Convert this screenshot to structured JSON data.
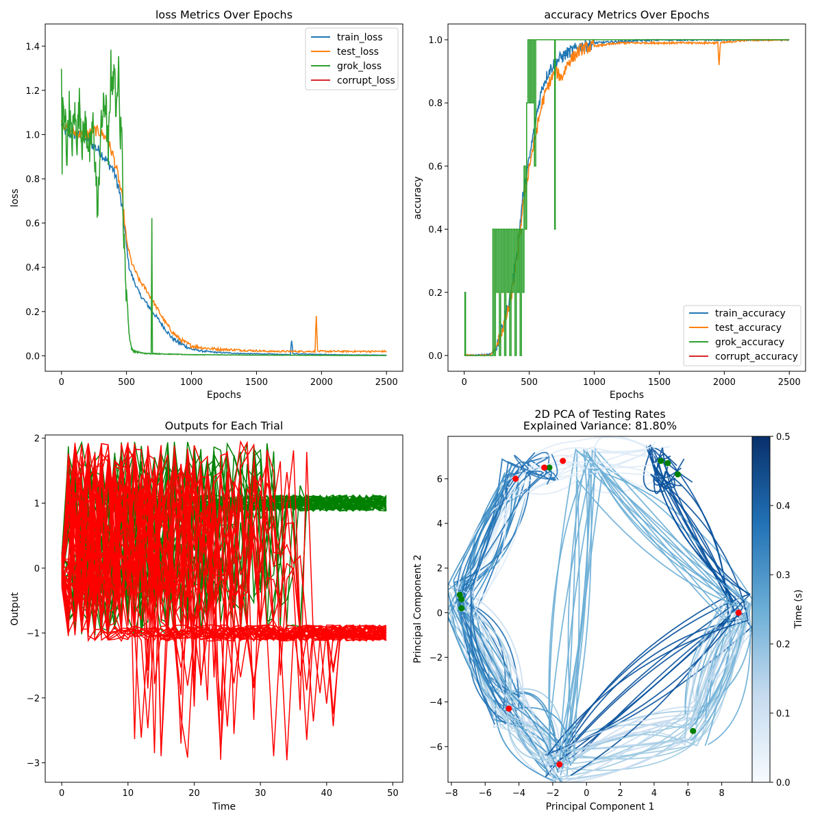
{
  "chart_data": [
    {
      "id": "loss",
      "type": "line",
      "title": "loss Metrics Over Epochs",
      "xlabel": "Epochs",
      "ylabel": "loss",
      "xlim": [
        -125,
        2625
      ],
      "ylim": [
        -0.07,
        1.5
      ],
      "xticks": [
        0,
        500,
        1000,
        1500,
        2000,
        2500
      ],
      "yticks": [
        0.0,
        0.2,
        0.4,
        0.6,
        0.8,
        1.0,
        1.2,
        1.4
      ],
      "legend_position": "top-right",
      "grid": false,
      "series": [
        {
          "name": "train_loss",
          "color": "#1f77b4",
          "points": [
            [
              0,
              1.04
            ],
            [
              50,
              1.0
            ],
            [
              100,
              1.0
            ],
            [
              150,
              0.99
            ],
            [
              200,
              0.97
            ],
            [
              250,
              0.95
            ],
            [
              300,
              0.92
            ],
            [
              350,
              0.88
            ],
            [
              400,
              0.84
            ],
            [
              440,
              0.76
            ],
            [
              470,
              0.65
            ],
            [
              500,
              0.5
            ],
            [
              520,
              0.4
            ],
            [
              550,
              0.35
            ],
            [
              600,
              0.28
            ],
            [
              650,
              0.24
            ],
            [
              700,
              0.2
            ],
            [
              750,
              0.16
            ],
            [
              800,
              0.12
            ],
            [
              850,
              0.08
            ],
            [
              900,
              0.06
            ],
            [
              950,
              0.045
            ],
            [
              1000,
              0.03
            ],
            [
              1100,
              0.02
            ],
            [
              1200,
              0.015
            ],
            [
              1400,
              0.01
            ],
            [
              1600,
              0.008
            ],
            [
              1760,
              0.005
            ],
            [
              1770,
              0.07
            ],
            [
              1780,
              0.01
            ],
            [
              2000,
              0.006
            ],
            [
              2200,
              0.004
            ],
            [
              2500,
              0.003
            ]
          ]
        },
        {
          "name": "test_loss",
          "color": "#ff7f0e",
          "points": [
            [
              0,
              1.06
            ],
            [
              50,
              1.02
            ],
            [
              100,
              1.01
            ],
            [
              150,
              1.0
            ],
            [
              200,
              1.0
            ],
            [
              250,
              1.02
            ],
            [
              300,
              1.01
            ],
            [
              350,
              0.98
            ],
            [
              400,
              0.9
            ],
            [
              440,
              0.8
            ],
            [
              470,
              0.7
            ],
            [
              500,
              0.52
            ],
            [
              540,
              0.42
            ],
            [
              600,
              0.34
            ],
            [
              650,
              0.3
            ],
            [
              700,
              0.25
            ],
            [
              750,
              0.2
            ],
            [
              800,
              0.15
            ],
            [
              850,
              0.11
            ],
            [
              900,
              0.08
            ],
            [
              950,
              0.06
            ],
            [
              1000,
              0.045
            ],
            [
              1100,
              0.035
            ],
            [
              1200,
              0.03
            ],
            [
              1400,
              0.025
            ],
            [
              1600,
              0.02
            ],
            [
              1800,
              0.02
            ],
            [
              1950,
              0.02
            ],
            [
              1960,
              0.19
            ],
            [
              1970,
              0.02
            ],
            [
              2100,
              0.02
            ],
            [
              2300,
              0.02
            ],
            [
              2450,
              0.02
            ],
            [
              2500,
              0.02
            ]
          ]
        },
        {
          "name": "grok_loss",
          "color": "#2ca02c",
          "points": [
            [
              0,
              1.32
            ],
            [
              5,
              0.81
            ],
            [
              10,
              1.2
            ],
            [
              20,
              1.0
            ],
            [
              30,
              1.1
            ],
            [
              40,
              0.9
            ],
            [
              60,
              1.12
            ],
            [
              80,
              0.95
            ],
            [
              100,
              1.1
            ],
            [
              120,
              0.98
            ],
            [
              140,
              1.16
            ],
            [
              160,
              0.95
            ],
            [
              180,
              1.05
            ],
            [
              200,
              1.0
            ],
            [
              220,
              0.9
            ],
            [
              240,
              1.06
            ],
            [
              260,
              0.87
            ],
            [
              280,
              0.64
            ],
            [
              300,
              1.0
            ],
            [
              320,
              1.1
            ],
            [
              340,
              1.15
            ],
            [
              360,
              0.9
            ],
            [
              380,
              1.3
            ],
            [
              400,
              1.2
            ],
            [
              410,
              1.38
            ],
            [
              420,
              1.0
            ],
            [
              440,
              1.43
            ],
            [
              450,
              0.95
            ],
            [
              460,
              1.1
            ],
            [
              480,
              0.5
            ],
            [
              500,
              0.3
            ],
            [
              520,
              0.1
            ],
            [
              540,
              0.03
            ],
            [
              560,
              0.02
            ],
            [
              600,
              0.015
            ],
            [
              650,
              0.01
            ],
            [
              690,
              0.01
            ],
            [
              695,
              0.63
            ],
            [
              700,
              0.01
            ],
            [
              800,
              0.008
            ],
            [
              1000,
              0.005
            ],
            [
              1500,
              0.003
            ],
            [
              2000,
              0.002
            ],
            [
              2500,
              0.001
            ]
          ]
        },
        {
          "name": "corrupt_loss",
          "color": "#d62728",
          "points": []
        }
      ]
    },
    {
      "id": "accuracy",
      "type": "line",
      "title": "accuracy Metrics Over Epochs",
      "xlabel": "Epochs",
      "ylabel": "accuracy",
      "xlim": [
        -125,
        2625
      ],
      "ylim": [
        -0.05,
        1.05
      ],
      "xticks": [
        0,
        500,
        1000,
        1500,
        2000,
        2500
      ],
      "yticks": [
        0.0,
        0.2,
        0.4,
        0.6,
        0.8,
        1.0
      ],
      "legend_position": "bottom-right",
      "grid": false,
      "series": [
        {
          "name": "train_accuracy",
          "color": "#1f77b4",
          "points": [
            [
              0,
              0.0
            ],
            [
              100,
              0.0
            ],
            [
              200,
              0.005
            ],
            [
              250,
              0.02
            ],
            [
              300,
              0.1
            ],
            [
              350,
              0.18
            ],
            [
              400,
              0.3
            ],
            [
              450,
              0.5
            ],
            [
              500,
              0.62
            ],
            [
              550,
              0.75
            ],
            [
              600,
              0.85
            ],
            [
              650,
              0.9
            ],
            [
              700,
              0.93
            ],
            [
              800,
              0.96
            ],
            [
              900,
              0.98
            ],
            [
              1000,
              0.99
            ],
            [
              1200,
              0.995
            ],
            [
              1500,
              1.0
            ],
            [
              2000,
              1.0
            ],
            [
              2500,
              1.0
            ]
          ]
        },
        {
          "name": "test_accuracy",
          "color": "#ff7f0e",
          "points": [
            [
              0,
              0.0
            ],
            [
              100,
              0.0
            ],
            [
              200,
              0.0
            ],
            [
              250,
              0.03
            ],
            [
              300,
              0.09
            ],
            [
              350,
              0.16
            ],
            [
              400,
              0.28
            ],
            [
              450,
              0.47
            ],
            [
              500,
              0.6
            ],
            [
              550,
              0.7
            ],
            [
              600,
              0.8
            ],
            [
              650,
              0.86
            ],
            [
              700,
              0.9
            ],
            [
              750,
              0.88
            ],
            [
              800,
              0.93
            ],
            [
              900,
              0.97
            ],
            [
              1000,
              0.98
            ],
            [
              1200,
              0.99
            ],
            [
              1400,
              0.99
            ],
            [
              1600,
              0.99
            ],
            [
              1800,
              0.99
            ],
            [
              1950,
              0.99
            ],
            [
              1960,
              0.92
            ],
            [
              1970,
              0.99
            ],
            [
              2200,
              1.0
            ],
            [
              2500,
              1.0
            ]
          ]
        },
        {
          "name": "grok_accuracy",
          "color": "#2ca02c",
          "points": [
            [
              0,
              0.0
            ],
            [
              5,
              0.2
            ],
            [
              10,
              0.0
            ],
            [
              200,
              0.0
            ],
            [
              220,
              0.4
            ],
            [
              230,
              0.0
            ],
            [
              240,
              0.4
            ],
            [
              250,
              0.2
            ],
            [
              260,
              0.4
            ],
            [
              270,
              0.0
            ],
            [
              280,
              0.4
            ],
            [
              290,
              0.2
            ],
            [
              300,
              0.4
            ],
            [
              310,
              0.0
            ],
            [
              320,
              0.4
            ],
            [
              330,
              0.2
            ],
            [
              340,
              0.4
            ],
            [
              350,
              0.0
            ],
            [
              360,
              0.4
            ],
            [
              370,
              0.2
            ],
            [
              380,
              0.4
            ],
            [
              390,
              0.0
            ],
            [
              400,
              0.4
            ],
            [
              410,
              0.2
            ],
            [
              420,
              0.4
            ],
            [
              430,
              0.0
            ],
            [
              440,
              0.4
            ],
            [
              450,
              0.2
            ],
            [
              460,
              0.6
            ],
            [
              470,
              0.4
            ],
            [
              480,
              0.8
            ],
            [
              490,
              1.0
            ],
            [
              500,
              0.8
            ],
            [
              510,
              1.0
            ],
            [
              520,
              0.8
            ],
            [
              530,
              1.0
            ],
            [
              540,
              0.6
            ],
            [
              550,
              1.0
            ],
            [
              600,
              1.0
            ],
            [
              690,
              1.0
            ],
            [
              695,
              0.4
            ],
            [
              700,
              1.0
            ],
            [
              1000,
              1.0
            ],
            [
              2000,
              1.0
            ],
            [
              2500,
              1.0
            ]
          ]
        },
        {
          "name": "corrupt_accuracy",
          "color": "#d62728",
          "points": []
        }
      ]
    },
    {
      "id": "outputs",
      "type": "line",
      "title": "Outputs for Each Trial",
      "xlabel": "Time",
      "ylabel": "Output",
      "xlim": [
        -2.5,
        51.5
      ],
      "ylim": [
        -3.3,
        2.05
      ],
      "xticks": [
        0,
        10,
        20,
        30,
        40,
        50
      ],
      "yticks": [
        -3,
        -2,
        -1,
        0,
        1,
        2
      ],
      "grid": false,
      "x_range": [
        0,
        49
      ],
      "trial_count_per_color": 40,
      "series_colors": {
        "positive": "#008000",
        "negative": "#ff0000"
      },
      "final_values": {
        "positive": 1.0,
        "negative": -1.0
      }
    },
    {
      "id": "pca",
      "type": "line",
      "title": "2D PCA of Testing Rates",
      "subtitle": "Explained Variance: 81.80%",
      "xlabel": "Principal Component 1",
      "ylabel": "Principal Component 2",
      "xlim": [
        -8.2,
        9.8
      ],
      "ylim": [
        -7.6,
        7.9
      ],
      "xticks": [
        -8,
        -6,
        -4,
        -2,
        0,
        2,
        4,
        6,
        8
      ],
      "yticks": [
        -6,
        -4,
        -2,
        0,
        2,
        4,
        6
      ],
      "grid": false,
      "colorbar": {
        "label": "Time (s)",
        "range": [
          0.0,
          0.5
        ],
        "ticks": [
          0.0,
          0.1,
          0.2,
          0.3,
          0.4,
          0.5
        ],
        "colormap": "Blues"
      },
      "start_marker_color": "#008000",
      "end_marker_color": "#ff0000",
      "anchor_points": [
        [
          -7.4,
          0.6
        ],
        [
          -4.2,
          6.0
        ],
        [
          -4.6,
          -4.3
        ],
        [
          -1.6,
          -6.8
        ],
        [
          0.2,
          6.8
        ],
        [
          4.4,
          6.8
        ],
        [
          6.5,
          -5.1
        ],
        [
          9.0,
          0.0
        ],
        [
          -2.5,
          6.5
        ],
        [
          5.4,
          6.2
        ]
      ]
    }
  ]
}
